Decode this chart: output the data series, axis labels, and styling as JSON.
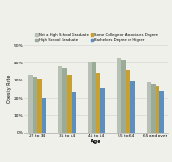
{
  "age_groups": [
    "25 to 34",
    "35 to 44",
    "45 to 54",
    "55 to 64",
    "65 and over"
  ],
  "series": [
    {
      "label": "Not a High School Graduate",
      "color": "#b8bfb5",
      "values": [
        33,
        38,
        41,
        43,
        29
      ]
    },
    {
      "label": "High School Graduate",
      "color": "#9aab97",
      "values": [
        32,
        37,
        40,
        42,
        28
      ]
    },
    {
      "label": "Some College or Associates Degree",
      "color": "#c8a030",
      "values": [
        31,
        33,
        34,
        36,
        27
      ]
    },
    {
      "label": "Bachelor's Degree or Higher",
      "color": "#5b8fc0",
      "values": [
        20,
        23,
        26,
        30,
        24
      ]
    }
  ],
  "ylabel": "Obesity Rate",
  "xlabel": "Age",
  "ylim": [
    0,
    50
  ],
  "yticks": [
    0,
    10,
    20,
    30,
    40,
    50
  ],
  "yticklabels": [
    "0%",
    "10%",
    "20%",
    "30%",
    "40%",
    "50%"
  ],
  "legend_ncol": 2,
  "bar_width": 0.15,
  "background_color": "#f0f0eb",
  "grid_color": "#d0d0d0"
}
